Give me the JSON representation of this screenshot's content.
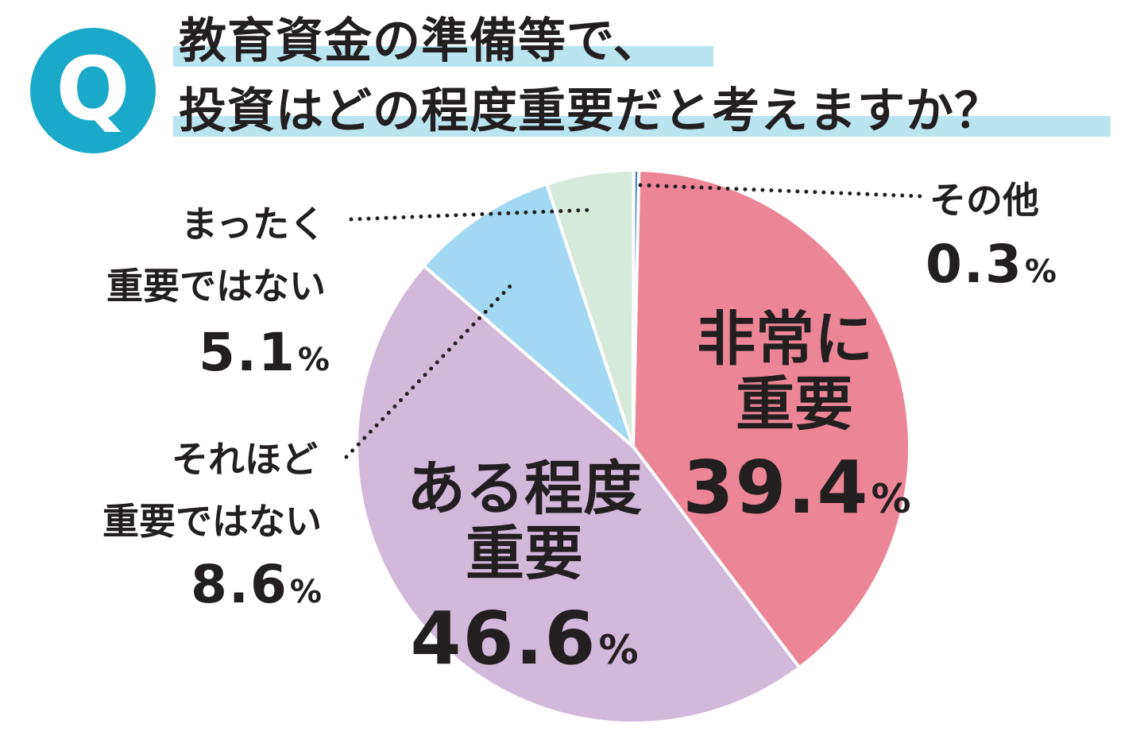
{
  "question": {
    "badge": "Q",
    "line1": "教育資金の準備等で、",
    "line2": "投資はどの程度重要だと考えますか？"
  },
  "colors": {
    "badge": "#1aa9c9",
    "highlight": "#b9e4f0",
    "slice_very": "#ec8598",
    "slice_somewhat": "#d2b8db",
    "slice_not_very": "#a3d8f3",
    "slice_not_at_all": "#d5eadb",
    "slice_other": "#4f86c6"
  },
  "chart_data": {
    "type": "pie",
    "unit": "%",
    "slices": [
      {
        "label_lines": [
          "非常に",
          "重要"
        ],
        "value": 39.4,
        "value_text": "39.4",
        "color": "#ec8598"
      },
      {
        "label_lines": [
          "ある程度",
          "重要"
        ],
        "value": 46.6,
        "value_text": "46.6",
        "color": "#d2b8db"
      },
      {
        "label_lines": [
          "それほど",
          "重要ではない"
        ],
        "value": 8.6,
        "value_text": "8.6",
        "color": "#a3d8f3"
      },
      {
        "label_lines": [
          "まったく",
          "重要ではない"
        ],
        "value": 5.1,
        "value_text": "5.1",
        "color": "#d5eadb"
      },
      {
        "label_lines": [
          "その他"
        ],
        "value": 0.3,
        "value_text": "0.3",
        "color": "#4f86c6"
      }
    ]
  }
}
